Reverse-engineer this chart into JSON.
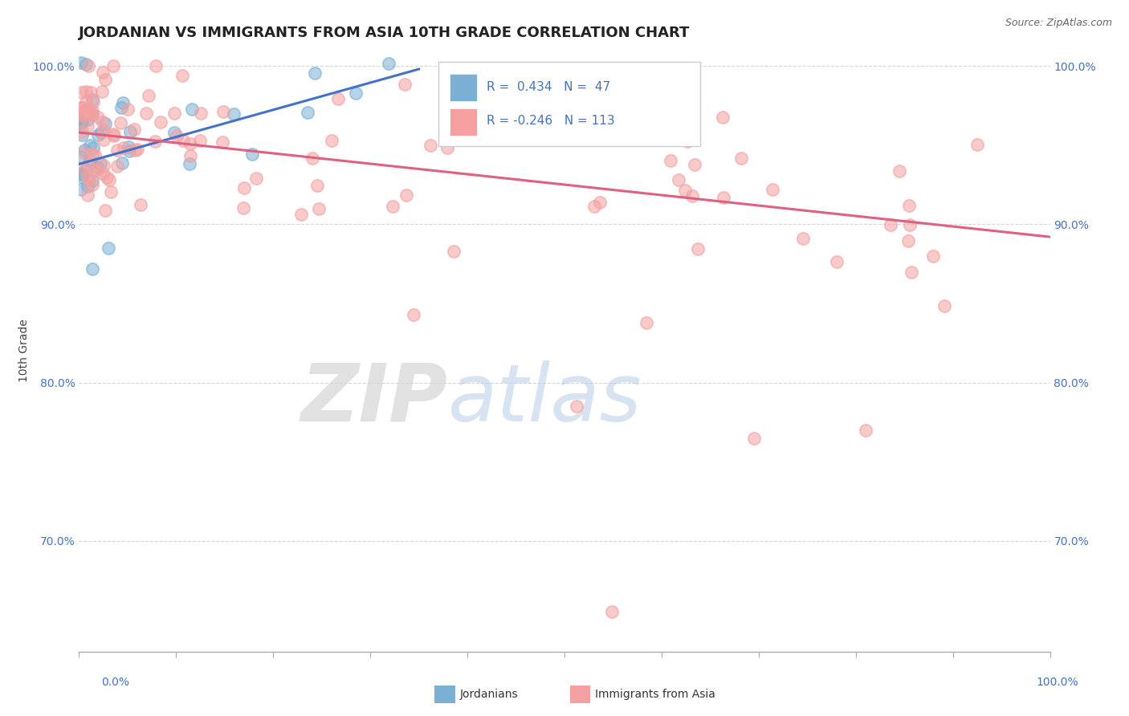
{
  "title": "JORDANIAN VS IMMIGRANTS FROM ASIA 10TH GRADE CORRELATION CHART",
  "source_text": "Source: ZipAtlas.com",
  "ylabel": "10th Grade",
  "blue_color": "#7bafd4",
  "pink_color": "#f4a0a0",
  "blue_line_color": "#4472c4",
  "pink_line_color": "#e06080",
  "axis_label_color": "#4472c4",
  "title_color": "#222222",
  "watermark_color_zip": "#d0dff0",
  "watermark_color_atlas": "#b8cce8",
  "watermark_text": "ZIPatlas",
  "bg_color": "#ffffff",
  "grid_color": "#cccccc",
  "xlim": [
    0.0,
    1.0
  ],
  "ylim": [
    0.63,
    1.01
  ],
  "yticks": [
    0.7,
    0.8,
    0.9,
    1.0
  ],
  "ytick_labels": [
    "70.0%",
    "80.0%",
    "90.0%",
    "100.0%"
  ],
  "title_fontsize": 13,
  "blue_line_x": [
    0.0,
    0.35
  ],
  "blue_line_y": [
    0.938,
    0.998
  ],
  "pink_line_x": [
    0.0,
    1.0
  ],
  "pink_line_y": [
    0.958,
    0.892
  ],
  "legend_r1_val": "0.434",
  "legend_n1_val": "47",
  "legend_r2_val": "-0.246",
  "legend_n2_val": "113"
}
